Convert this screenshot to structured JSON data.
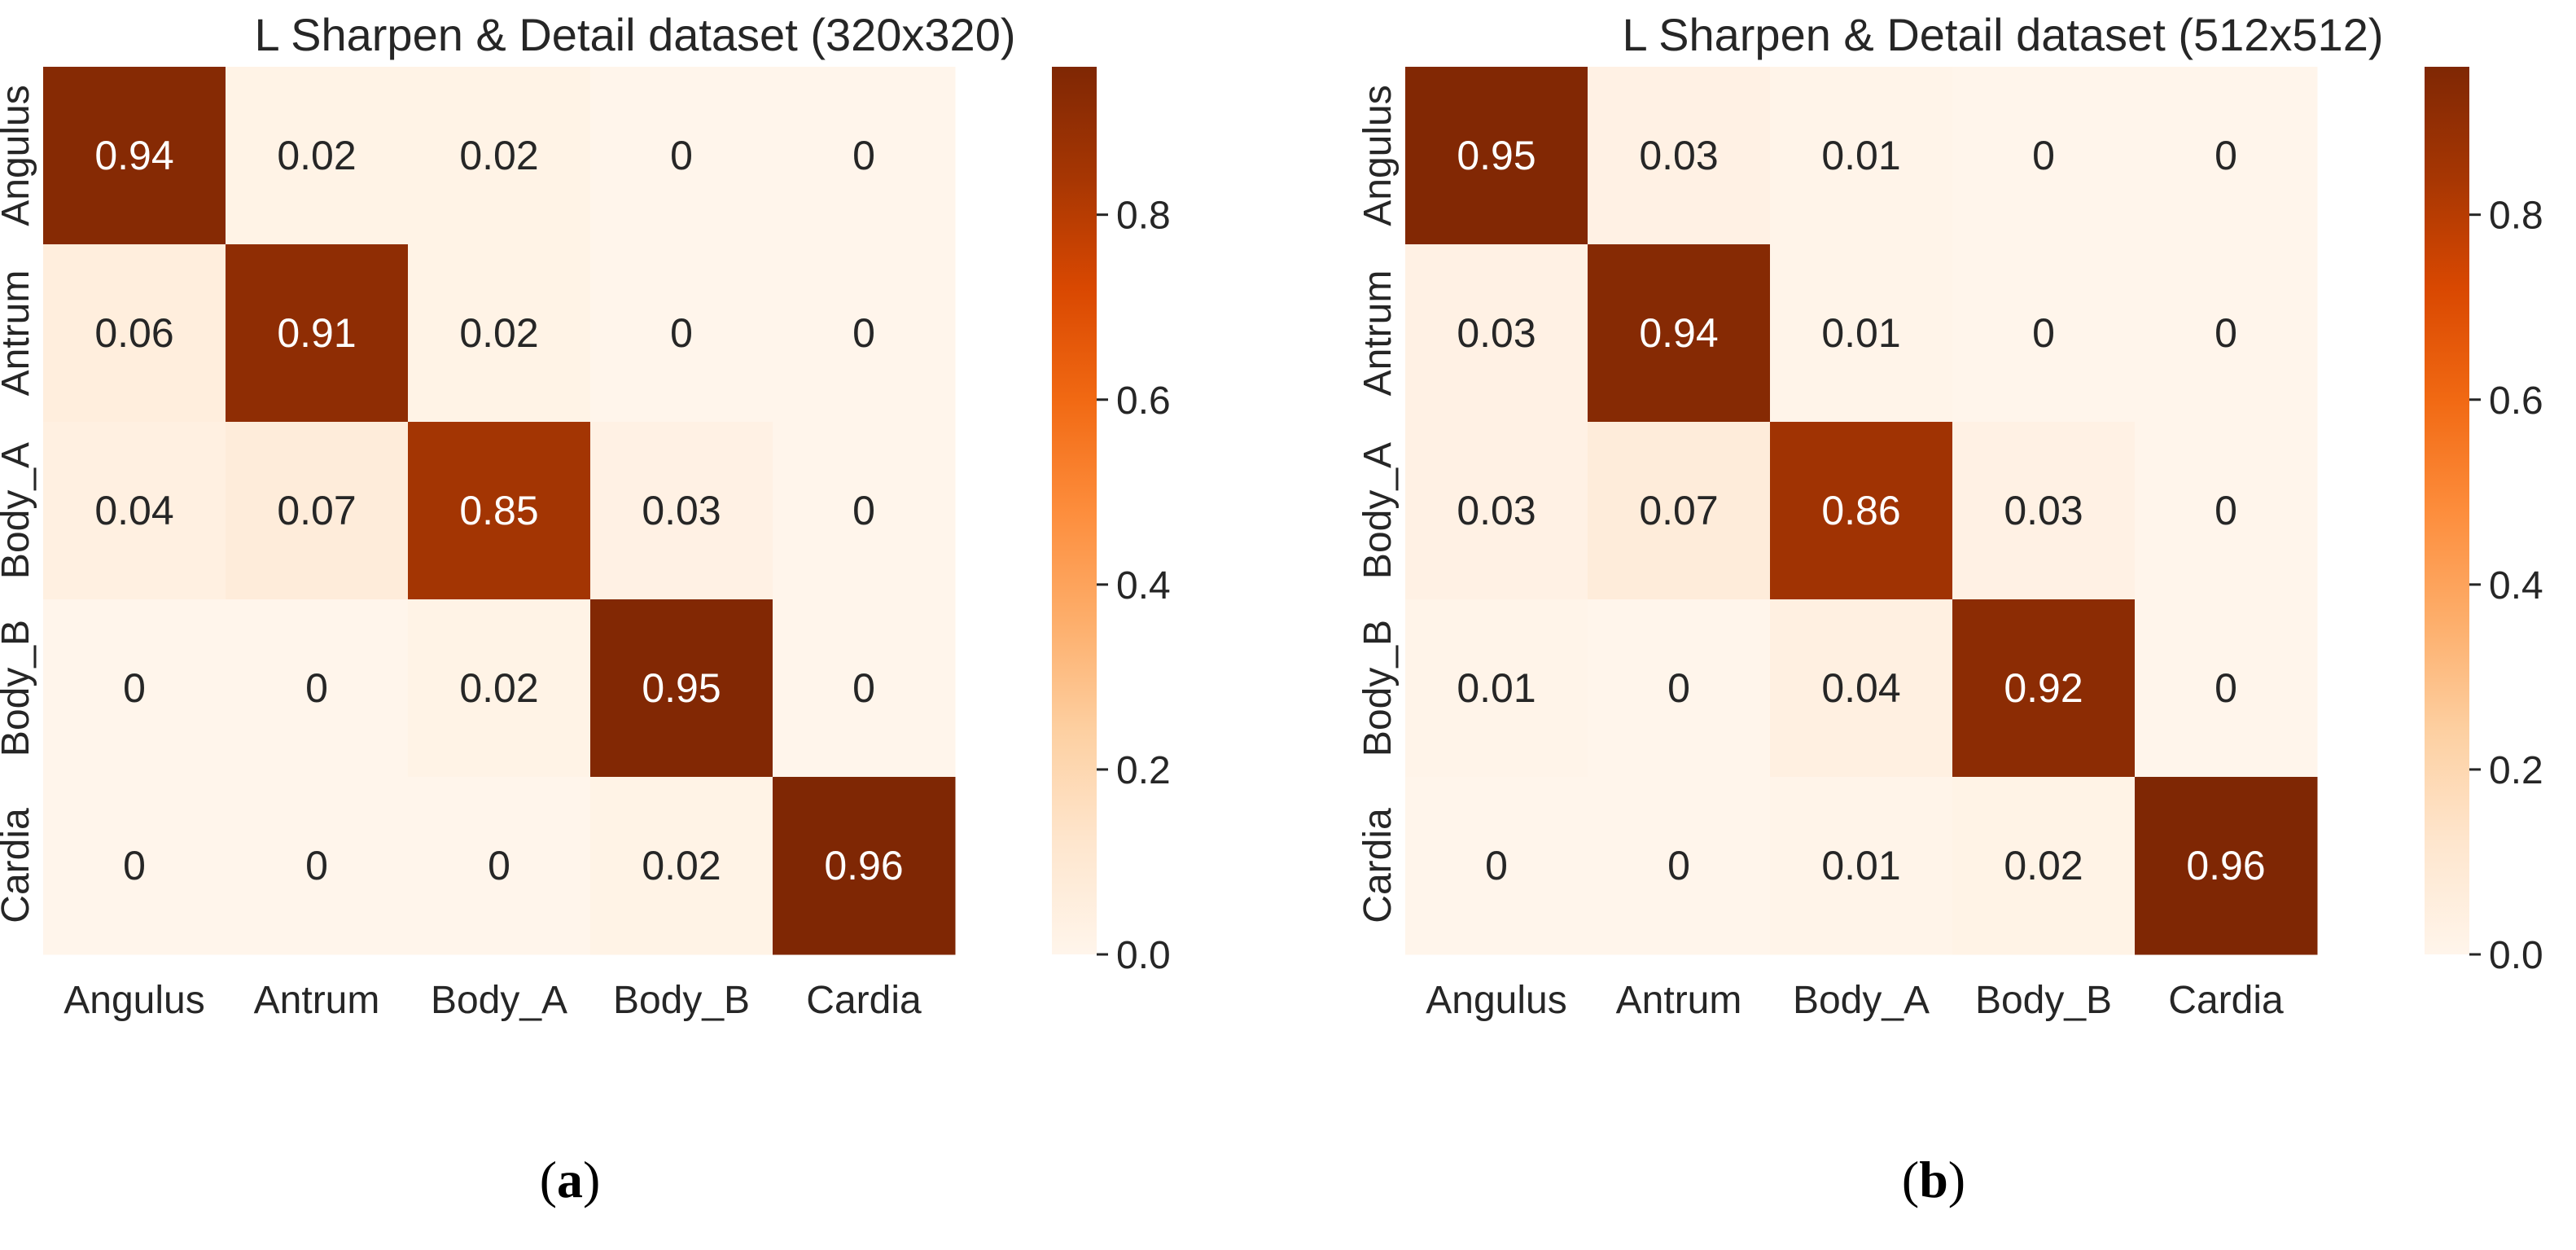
{
  "chart_data": [
    {
      "type": "heatmap",
      "title": "L Sharpen & Detail dataset (320x320)",
      "caption": "(a)",
      "caption_letter": "a",
      "x_categories": [
        "Angulus",
        "Antrum",
        "Body_A",
        "Body_B",
        "Cardia"
      ],
      "y_categories": [
        "Angulus",
        "Antrum",
        "Body_A",
        "Body_B",
        "Cardia"
      ],
      "values": [
        [
          0.94,
          0.02,
          0.02,
          0,
          0
        ],
        [
          0.06,
          0.91,
          0.02,
          0,
          0
        ],
        [
          0.04,
          0.07,
          0.85,
          0.03,
          0
        ],
        [
          0,
          0,
          0.02,
          0.95,
          0
        ],
        [
          0,
          0,
          0,
          0.02,
          0.96
        ]
      ],
      "colorbar": {
        "min": 0.0,
        "max": 0.96,
        "ticks": [
          "0.0",
          "0.2",
          "0.4",
          "0.6",
          "0.8"
        ],
        "colormap": "Oranges"
      }
    },
    {
      "type": "heatmap",
      "title": "L Sharpen & Detail dataset (512x512)",
      "caption": "(b)",
      "caption_letter": "b",
      "x_categories": [
        "Angulus",
        "Antrum",
        "Body_A",
        "Body_B",
        "Cardia"
      ],
      "y_categories": [
        "Angulus",
        "Antrum",
        "Body_A",
        "Body_B",
        "Cardia"
      ],
      "values": [
        [
          0.95,
          0.03,
          0.01,
          0,
          0
        ],
        [
          0.03,
          0.94,
          0.01,
          0,
          0
        ],
        [
          0.03,
          0.07,
          0.86,
          0.03,
          0
        ],
        [
          0.01,
          0,
          0.04,
          0.92,
          0
        ],
        [
          0,
          0,
          0.01,
          0.02,
          0.96
        ]
      ],
      "colorbar": {
        "min": 0.0,
        "max": 0.96,
        "ticks": [
          "0.0",
          "0.2",
          "0.4",
          "0.6",
          "0.8"
        ],
        "colormap": "Oranges"
      }
    }
  ],
  "colors": {
    "low": "#fff5eb",
    "stops": [
      "#fff5eb",
      "#fee6ce",
      "#fdd0a2",
      "#fdae6b",
      "#fd8d3c",
      "#f16913",
      "#d94801",
      "#a63603",
      "#7f2704"
    ],
    "text_dark": "#262626",
    "text_light": "#ffffff"
  }
}
